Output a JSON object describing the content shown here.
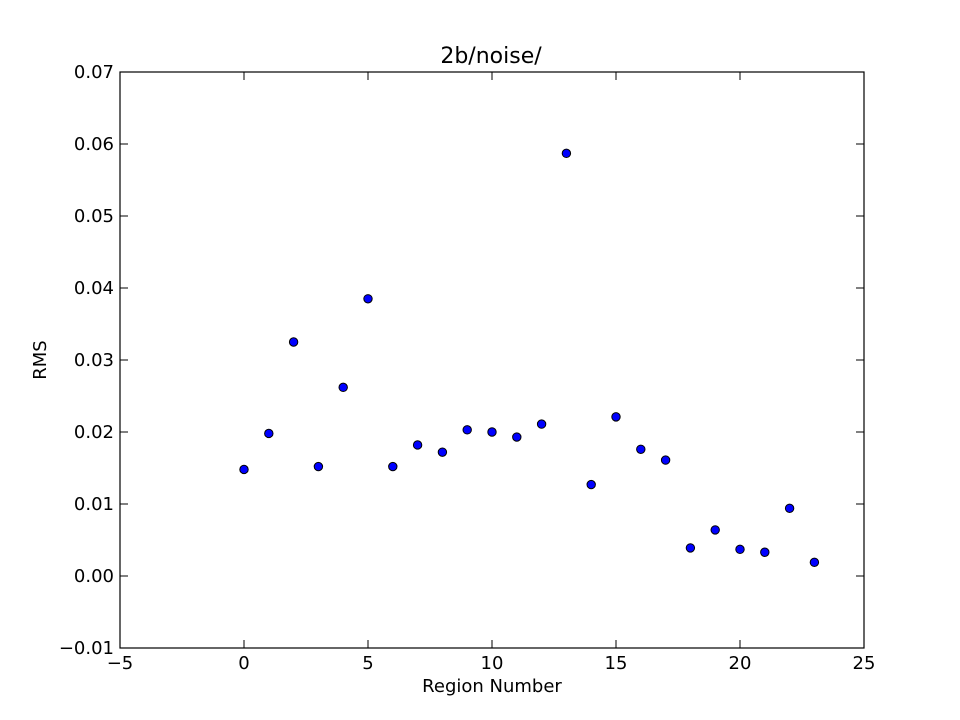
{
  "chart_data": {
    "type": "scatter",
    "title": "2b/noise/",
    "xlabel": "Region Number",
    "ylabel": "RMS",
    "xlim": [
      -5,
      25
    ],
    "ylim": [
      -0.01,
      0.07
    ],
    "xticks": [
      -5,
      0,
      5,
      10,
      15,
      20,
      25
    ],
    "xtick_labels": [
      "−5",
      "0",
      "5",
      "10",
      "15",
      "20",
      "25"
    ],
    "yticks": [
      -0.01,
      0.0,
      0.01,
      0.02,
      0.03,
      0.04,
      0.05,
      0.06,
      0.07
    ],
    "ytick_labels": [
      "−0.01",
      "0.00",
      "0.01",
      "0.02",
      "0.03",
      "0.04",
      "0.05",
      "0.06",
      "0.07"
    ],
    "grid": false,
    "marker_color": "#0000ff",
    "marker_edge_color": "#000000",
    "series": [
      {
        "x": [
          0,
          1,
          2,
          3,
          4,
          5,
          6,
          7,
          8,
          9,
          10,
          11,
          12,
          13,
          14,
          15,
          16,
          17,
          18,
          19,
          20,
          21,
          22,
          23
        ],
        "y": [
          0.0148,
          0.0198,
          0.0325,
          0.0152,
          0.0262,
          0.0385,
          0.0152,
          0.0182,
          0.0172,
          0.0203,
          0.02,
          0.0193,
          0.0211,
          0.0587,
          0.0127,
          0.0221,
          0.0176,
          0.0161,
          0.0039,
          0.0064,
          0.0037,
          0.0033,
          0.0094,
          0.0019
        ]
      }
    ]
  }
}
